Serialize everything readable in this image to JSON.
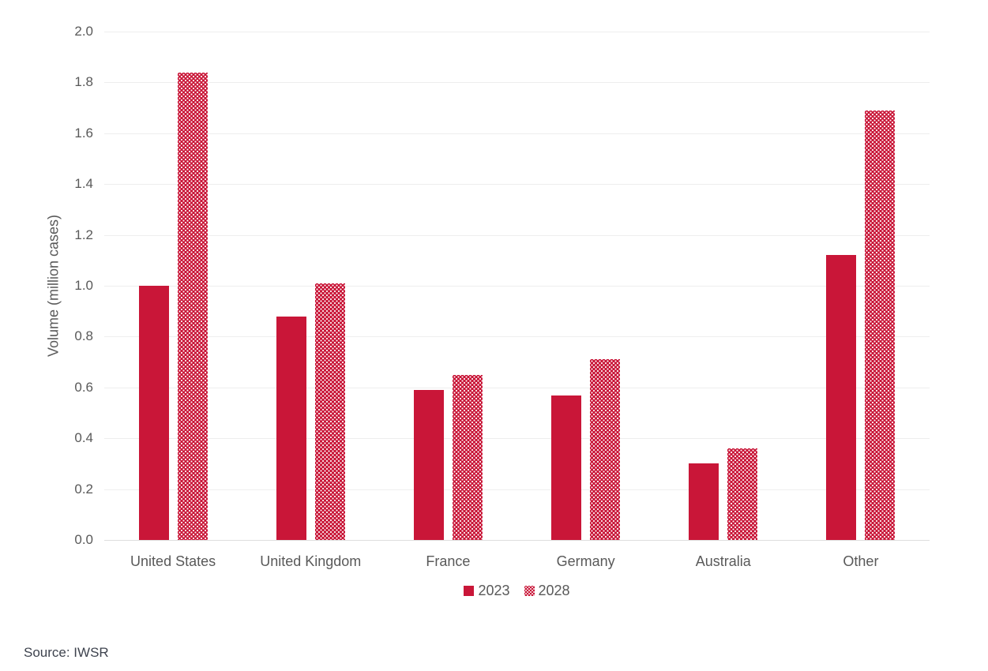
{
  "chart_data": {
    "type": "bar",
    "title": "",
    "categories": [
      "United States",
      "United Kingdom",
      "France",
      "Germany",
      "Australia",
      "Other"
    ],
    "series": [
      {
        "name": "2023",
        "style": "solid",
        "values": [
          1.0,
          0.88,
          0.59,
          0.57,
          0.3,
          1.12
        ]
      },
      {
        "name": "2028",
        "style": "pattern",
        "values": [
          1.84,
          1.01,
          0.65,
          0.71,
          0.36,
          1.69
        ]
      }
    ],
    "xlabel": "",
    "ylabel": "Volume (million cases)",
    "ylim": [
      0.0,
      2.0
    ],
    "ytick_step": 0.2,
    "yticks": [
      "2.0",
      "1.8",
      "1.6",
      "1.4",
      "1.2",
      "1.0",
      "0.8",
      "0.6",
      "0.4",
      "0.2",
      "0.0"
    ],
    "grid": true,
    "legend_position": "bottom-center",
    "colors": {
      "bar": "#c91638",
      "gridline": "#eeeeee",
      "axis_text": "#595959",
      "source_text": "#3e434e",
      "background": "#ffffff"
    }
  },
  "legend": {
    "items": [
      {
        "label": "2023"
      },
      {
        "label": "2028"
      }
    ]
  },
  "source": {
    "text": "Source: IWSR"
  }
}
